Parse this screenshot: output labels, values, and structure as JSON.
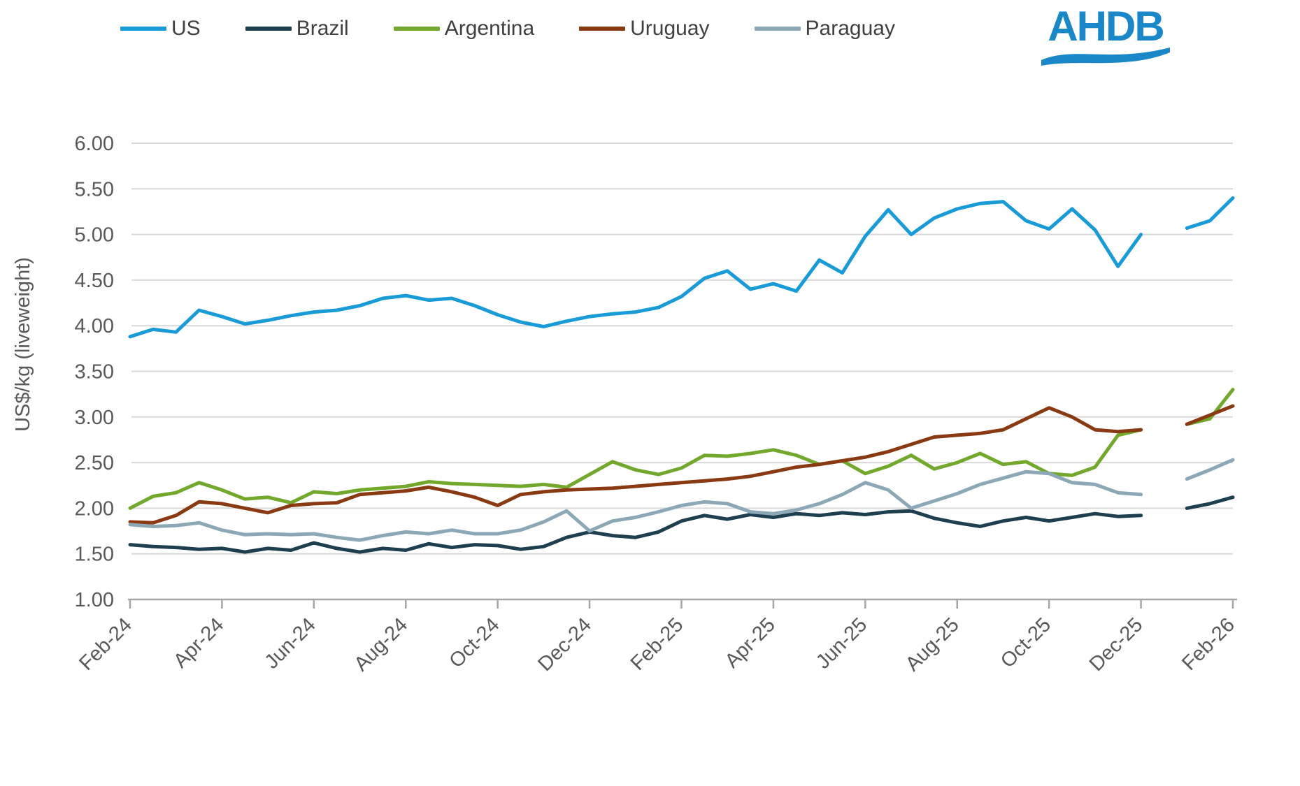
{
  "page": {
    "background": "#ffffff"
  },
  "logo": {
    "text": "AHDB",
    "color": "#1a87c8"
  },
  "legend": {
    "position": "top"
  },
  "chart_data": {
    "type": "line",
    "title": "",
    "xlabel": "",
    "ylabel": "US$/kg (liveweight)",
    "ylim": [
      1.0,
      6.0
    ],
    "ytick_step": 0.5,
    "ytick_labels": [
      "1.00",
      "1.50",
      "2.00",
      "2.50",
      "3.00",
      "3.50",
      "4.00",
      "4.50",
      "5.00",
      "5.50",
      "6.00"
    ],
    "xtick_labels": [
      "Feb-24",
      "Apr-24",
      "Jun-24",
      "Aug-24",
      "Oct-24",
      "Dec-24",
      "Feb-25",
      "Apr-25",
      "Jun-25",
      "Aug-25",
      "Oct-25",
      "Dec-25",
      "Feb-26"
    ],
    "x_start_label": "Feb-24",
    "x_months_span": 24,
    "x_step_months": 0.5,
    "grid": "horizontal",
    "legend_position": "top",
    "grid_color": "#d9d9d9",
    "axis_color": "#a6a6a6",
    "label_color": "#595959",
    "legend_text_color": "#404040",
    "line_width": 5,
    "series": [
      {
        "name": "US",
        "color": "#189bd7",
        "values": [
          3.88,
          3.96,
          3.93,
          4.17,
          4.1,
          4.02,
          4.06,
          4.11,
          4.15,
          4.17,
          4.22,
          4.3,
          4.33,
          4.28,
          4.3,
          4.22,
          4.12,
          4.04,
          3.99,
          4.05,
          4.1,
          4.13,
          4.15,
          4.2,
          4.32,
          4.52,
          4.6,
          4.4,
          4.46,
          4.38,
          4.72,
          4.58,
          4.98,
          5.27,
          5.0,
          5.18,
          5.28,
          5.34,
          5.36,
          5.15,
          5.06,
          5.28,
          5.05,
          4.65,
          5.0,
          null,
          5.07,
          5.15,
          5.4
        ]
      },
      {
        "name": "Brazil",
        "color": "#1e3f4f",
        "values": [
          1.6,
          1.58,
          1.57,
          1.55,
          1.56,
          1.52,
          1.56,
          1.54,
          1.62,
          1.56,
          1.52,
          1.56,
          1.54,
          1.61,
          1.57,
          1.6,
          1.59,
          1.55,
          1.58,
          1.68,
          1.74,
          1.7,
          1.68,
          1.74,
          1.86,
          1.92,
          1.88,
          1.93,
          1.9,
          1.94,
          1.92,
          1.95,
          1.93,
          1.96,
          1.97,
          1.89,
          1.84,
          1.8,
          1.86,
          1.9,
          1.86,
          1.9,
          1.94,
          1.91,
          1.92,
          null,
          2.0,
          2.05,
          2.12
        ]
      },
      {
        "name": "Argentina",
        "color": "#72a82b",
        "values": [
          2.0,
          2.13,
          2.17,
          2.28,
          2.2,
          2.1,
          2.12,
          2.06,
          2.18,
          2.16,
          2.2,
          2.22,
          2.24,
          2.29,
          2.27,
          2.26,
          2.25,
          2.24,
          2.26,
          2.23,
          2.37,
          2.51,
          2.42,
          2.37,
          2.44,
          2.58,
          2.57,
          2.6,
          2.64,
          2.58,
          2.48,
          2.52,
          2.38,
          2.46,
          2.58,
          2.43,
          2.5,
          2.6,
          2.48,
          2.51,
          2.38,
          2.36,
          2.45,
          2.8,
          2.86,
          null,
          2.92,
          2.98,
          3.3
        ]
      },
      {
        "name": "Uruguay",
        "color": "#8a3a12",
        "values": [
          1.85,
          1.84,
          1.92,
          2.07,
          2.05,
          2.0,
          1.95,
          2.03,
          2.05,
          2.06,
          2.15,
          2.17,
          2.19,
          2.23,
          2.18,
          2.12,
          2.03,
          2.15,
          2.18,
          2.2,
          2.21,
          2.22,
          2.24,
          2.26,
          2.28,
          2.3,
          2.32,
          2.35,
          2.4,
          2.45,
          2.48,
          2.52,
          2.56,
          2.62,
          2.7,
          2.78,
          2.8,
          2.82,
          2.86,
          2.98,
          3.1,
          3.0,
          2.86,
          2.84,
          2.86,
          null,
          2.92,
          3.02,
          3.12
        ]
      },
      {
        "name": "Paraguay",
        "color": "#8ca7b6",
        "values": [
          1.82,
          1.8,
          1.81,
          1.84,
          1.76,
          1.71,
          1.72,
          1.71,
          1.72,
          1.68,
          1.65,
          1.7,
          1.74,
          1.72,
          1.76,
          1.72,
          1.72,
          1.76,
          1.85,
          1.97,
          1.75,
          1.86,
          1.9,
          1.96,
          2.03,
          2.07,
          2.05,
          1.96,
          1.94,
          1.98,
          2.05,
          2.15,
          2.28,
          2.2,
          2.0,
          2.08,
          2.16,
          2.26,
          2.33,
          2.4,
          2.38,
          2.28,
          2.26,
          2.17,
          2.15,
          null,
          2.32,
          2.42,
          2.53
        ]
      }
    ]
  }
}
